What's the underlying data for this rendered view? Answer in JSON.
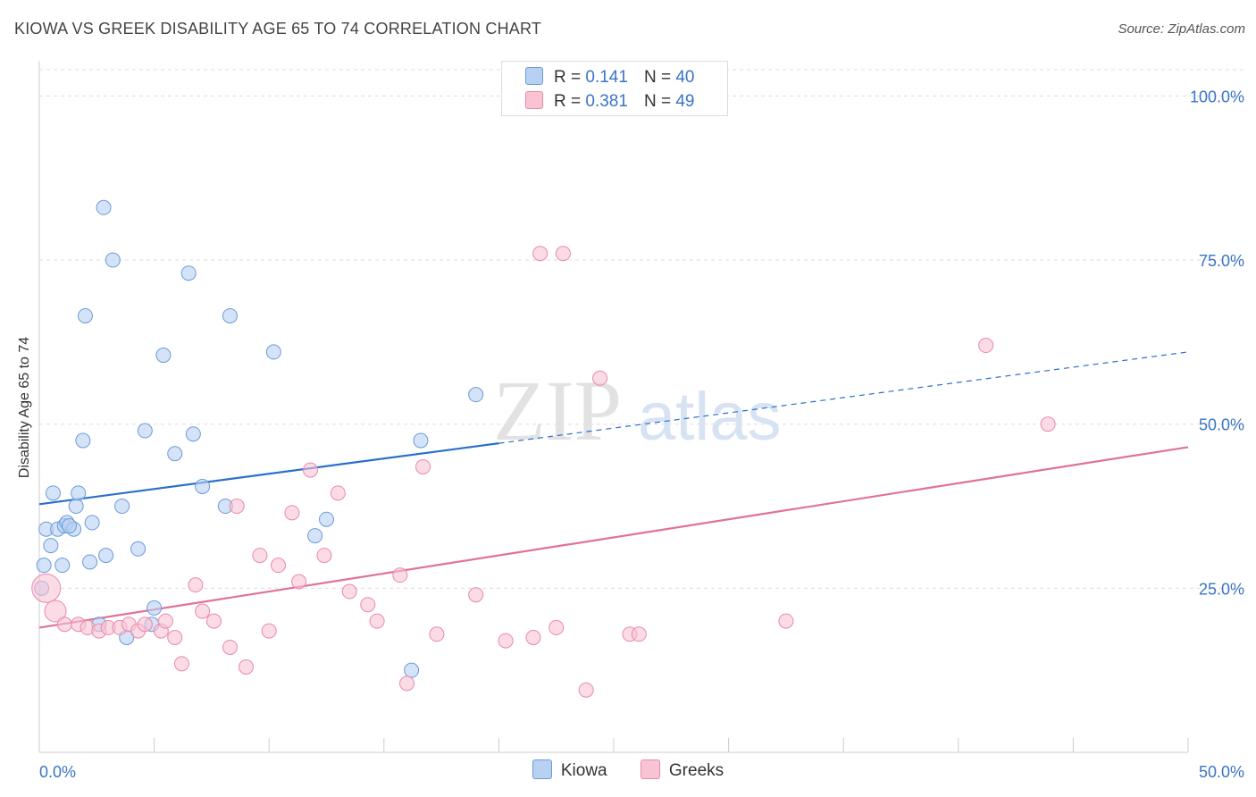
{
  "header": {
    "title": "KIOWA VS GREEK DISABILITY AGE 65 TO 74 CORRELATION CHART",
    "source": "Source: ZipAtlas.com"
  },
  "watermark": {
    "zip": "ZIP",
    "atlas": "atlas"
  },
  "legend": {
    "rows": [
      {
        "r_label": "R =",
        "r_value": "0.141",
        "n_label": "N =",
        "n_value": "40"
      },
      {
        "r_label": "R =",
        "r_value": "0.381",
        "n_label": "N =",
        "n_value": "49"
      }
    ],
    "bottom": [
      "Kiowa",
      "Greeks"
    ]
  },
  "colors": {
    "kiowa_fill": "#b8d1f3",
    "kiowa_stroke": "#6b9bd8",
    "kiowa_line": "#2a6fcb",
    "greeks_fill": "#f8c3d3",
    "greeks_stroke": "#e98aa9",
    "greeks_line": "#e0729a",
    "tick_label": "#3a74c4"
  },
  "chart_data": {
    "type": "scatter",
    "title": "KIOWA VS GREEK DISABILITY AGE 65 TO 74 CORRELATION CHART",
    "xlabel": "",
    "ylabel": "Disability Age 65 to 74",
    "xlim": [
      0,
      50
    ],
    "ylim": [
      0,
      104
    ],
    "x_tick_labels": [
      "0.0%",
      "50.0%"
    ],
    "y_ticks": [
      25,
      50,
      75,
      100
    ],
    "y_tick_labels": [
      "25.0%",
      "50.0%",
      "75.0%",
      "100.0%"
    ],
    "grid": true,
    "legend_position": "top-center",
    "series": [
      {
        "name": "Kiowa",
        "r": 0.141,
        "n": 40,
        "trend": {
          "x0": 0,
          "y0": 37.8,
          "x_solid_end": 20,
          "x1": 50,
          "y1": 61.0
        },
        "points": [
          [
            0.1,
            25.0
          ],
          [
            0.2,
            28.5
          ],
          [
            0.3,
            34.0
          ],
          [
            0.5,
            31.5
          ],
          [
            0.6,
            39.5
          ],
          [
            0.8,
            34.0
          ],
          [
            1.0,
            28.5
          ],
          [
            1.1,
            34.5
          ],
          [
            1.2,
            35.0
          ],
          [
            1.5,
            34.0
          ],
          [
            1.6,
            37.5
          ],
          [
            1.7,
            39.5
          ],
          [
            1.9,
            47.5
          ],
          [
            2.0,
            66.5
          ],
          [
            2.2,
            29.0
          ],
          [
            2.3,
            35.0
          ],
          [
            2.6,
            19.5
          ],
          [
            2.9,
            30.0
          ],
          [
            2.8,
            83.0
          ],
          [
            3.2,
            75.0
          ],
          [
            3.6,
            37.5
          ],
          [
            3.8,
            17.5
          ],
          [
            4.3,
            31.0
          ],
          [
            4.6,
            49.0
          ],
          [
            5.0,
            22.0
          ],
          [
            5.4,
            60.5
          ],
          [
            5.9,
            45.5
          ],
          [
            6.5,
            73.0
          ],
          [
            6.7,
            48.5
          ],
          [
            7.1,
            40.5
          ],
          [
            8.1,
            37.5
          ],
          [
            8.3,
            66.5
          ],
          [
            10.2,
            61.0
          ],
          [
            12.0,
            33.0
          ],
          [
            12.5,
            35.5
          ],
          [
            16.2,
            12.5
          ],
          [
            16.6,
            47.5
          ],
          [
            19.0,
            54.5
          ],
          [
            1.3,
            34.5
          ],
          [
            4.9,
            19.5
          ]
        ]
      },
      {
        "name": "Greeks",
        "r": 0.381,
        "n": 49,
        "trend": {
          "x0": 0,
          "y0": 19.0,
          "x1": 50,
          "y1": 46.5
        },
        "points": [
          [
            0.3,
            25.0
          ],
          [
            0.7,
            21.5
          ],
          [
            1.1,
            19.5
          ],
          [
            1.7,
            19.5
          ],
          [
            2.1,
            19.0
          ],
          [
            2.6,
            18.5
          ],
          [
            3.0,
            19.0
          ],
          [
            3.5,
            19.0
          ],
          [
            3.9,
            19.5
          ],
          [
            4.3,
            18.5
          ],
          [
            4.6,
            19.5
          ],
          [
            5.3,
            18.5
          ],
          [
            5.5,
            20.0
          ],
          [
            5.9,
            17.5
          ],
          [
            6.2,
            13.5
          ],
          [
            6.8,
            25.5
          ],
          [
            7.1,
            21.5
          ],
          [
            7.6,
            20.0
          ],
          [
            8.3,
            16.0
          ],
          [
            8.6,
            37.5
          ],
          [
            9.0,
            13.0
          ],
          [
            9.6,
            30.0
          ],
          [
            10.0,
            18.5
          ],
          [
            10.4,
            28.5
          ],
          [
            11.0,
            36.5
          ],
          [
            11.3,
            26.0
          ],
          [
            11.8,
            43.0
          ],
          [
            12.4,
            30.0
          ],
          [
            13.0,
            39.5
          ],
          [
            13.5,
            24.5
          ],
          [
            14.3,
            22.5
          ],
          [
            14.7,
            20.0
          ],
          [
            15.7,
            27.0
          ],
          [
            16.0,
            10.5
          ],
          [
            16.7,
            43.5
          ],
          [
            17.3,
            18.0
          ],
          [
            19.0,
            24.0
          ],
          [
            20.3,
            17.0
          ],
          [
            21.5,
            17.5
          ],
          [
            21.8,
            76.0
          ],
          [
            22.5,
            19.0
          ],
          [
            22.8,
            76.0
          ],
          [
            23.8,
            9.5
          ],
          [
            24.4,
            57.0
          ],
          [
            25.7,
            18.0
          ],
          [
            26.1,
            18.0
          ],
          [
            32.5,
            20.0
          ],
          [
            41.2,
            62.0
          ],
          [
            43.9,
            50.0
          ]
        ]
      }
    ]
  }
}
